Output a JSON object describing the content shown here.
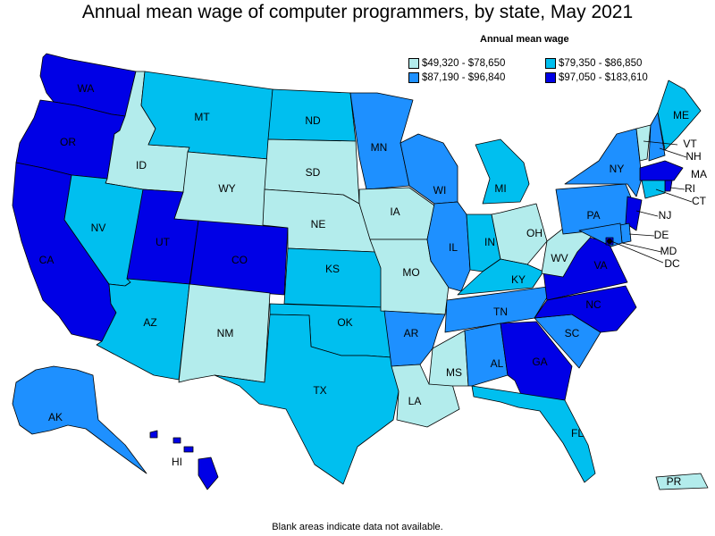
{
  "title": "Annual mean wage of computer programmers, by state, May 2021",
  "legend": {
    "title": "Annual mean wage",
    "items": [
      {
        "label": "$49,320 - $78,650",
        "color": "#b3ecec"
      },
      {
        "label": "$79,350 - $86,850",
        "color": "#00bfef"
      },
      {
        "label": "$87,190 - $96,840",
        "color": "#1e90ff"
      },
      {
        "label": "$97,050 - $183,610",
        "color": "#0000e6"
      }
    ]
  },
  "note": "Blank areas indicate data not available.",
  "states": [
    {
      "abbr": "WA",
      "bin": 3
    },
    {
      "abbr": "OR",
      "bin": 3
    },
    {
      "abbr": "CA",
      "bin": 3
    },
    {
      "abbr": "ID",
      "bin": 0
    },
    {
      "abbr": "NV",
      "bin": 1
    },
    {
      "abbr": "MT",
      "bin": 1
    },
    {
      "abbr": "WY",
      "bin": 0
    },
    {
      "abbr": "UT",
      "bin": 3
    },
    {
      "abbr": "AZ",
      "bin": 1
    },
    {
      "abbr": "CO",
      "bin": 3
    },
    {
      "abbr": "NM",
      "bin": 0
    },
    {
      "abbr": "ND",
      "bin": 1
    },
    {
      "abbr": "SD",
      "bin": 0
    },
    {
      "abbr": "NE",
      "bin": 0
    },
    {
      "abbr": "KS",
      "bin": 1
    },
    {
      "abbr": "OK",
      "bin": 1
    },
    {
      "abbr": "TX",
      "bin": 1
    },
    {
      "abbr": "MN",
      "bin": 2
    },
    {
      "abbr": "IA",
      "bin": 0
    },
    {
      "abbr": "MO",
      "bin": 0
    },
    {
      "abbr": "AR",
      "bin": 2
    },
    {
      "abbr": "LA",
      "bin": 0
    },
    {
      "abbr": "WI",
      "bin": 2
    },
    {
      "abbr": "IL",
      "bin": 2
    },
    {
      "abbr": "MI",
      "bin": 1
    },
    {
      "abbr": "IN",
      "bin": 1
    },
    {
      "abbr": "OH",
      "bin": 0
    },
    {
      "abbr": "KY",
      "bin": 1
    },
    {
      "abbr": "TN",
      "bin": 2
    },
    {
      "abbr": "MS",
      "bin": 0
    },
    {
      "abbr": "AL",
      "bin": 2
    },
    {
      "abbr": "GA",
      "bin": 3
    },
    {
      "abbr": "FL",
      "bin": 1
    },
    {
      "abbr": "SC",
      "bin": 2
    },
    {
      "abbr": "NC",
      "bin": 3
    },
    {
      "abbr": "VA",
      "bin": 3
    },
    {
      "abbr": "WV",
      "bin": 0
    },
    {
      "abbr": "PA",
      "bin": 2
    },
    {
      "abbr": "NY",
      "bin": 2
    },
    {
      "abbr": "VT",
      "bin": 0
    },
    {
      "abbr": "NH",
      "bin": 2
    },
    {
      "abbr": "ME",
      "bin": 1
    },
    {
      "abbr": "MA",
      "bin": 3
    },
    {
      "abbr": "RI",
      "bin": 3
    },
    {
      "abbr": "CT",
      "bin": 1
    },
    {
      "abbr": "NJ",
      "bin": 3
    },
    {
      "abbr": "DE",
      "bin": 2
    },
    {
      "abbr": "MD",
      "bin": 2
    },
    {
      "abbr": "DC",
      "bin": 3
    },
    {
      "abbr": "AK",
      "bin": 2
    },
    {
      "abbr": "HI",
      "bin": 3
    },
    {
      "abbr": "PR",
      "bin": 0
    }
  ]
}
